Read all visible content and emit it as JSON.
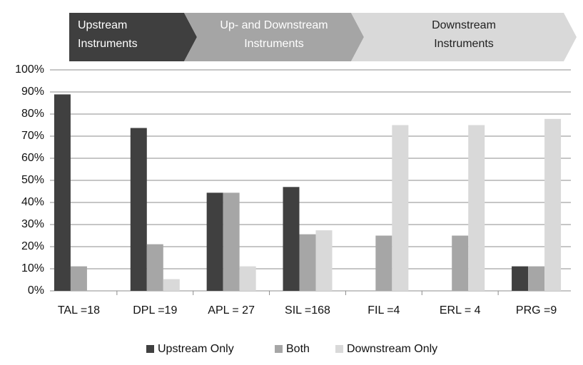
{
  "chart_data": {
    "type": "bar",
    "annotations": [
      {
        "lines": [
          "Upstream",
          "Instruments"
        ],
        "color": "#3f3f3f"
      },
      {
        "lines": [
          "Up- and Downstream",
          "Instruments"
        ],
        "color": "#a5a5a5"
      },
      {
        "lines": [
          "Downstream",
          "Instruments"
        ],
        "color": "#d9d9d9"
      }
    ],
    "categories": [
      "TAL =18",
      "DPL =19",
      "APL = 27",
      "SIL =168",
      "FIL =4",
      "ERL = 4",
      "PRG =9"
    ],
    "series": [
      {
        "name": "Upstream Only",
        "color": "#404040",
        "values": [
          88.9,
          73.7,
          44.4,
          47.0,
          0,
          0,
          11.1
        ]
      },
      {
        "name": "Both",
        "color": "#a6a6a6",
        "values": [
          11.1,
          21.1,
          44.4,
          25.6,
          25,
          25,
          11.1
        ]
      },
      {
        "name": "Downstream Only",
        "color": "#d9d9d9",
        "values": [
          0,
          5.3,
          11.1,
          27.4,
          75,
          75,
          77.8
        ]
      }
    ],
    "ylim": [
      0,
      100
    ],
    "yticks": [
      {
        "value": 0,
        "label": "0%"
      },
      {
        "value": 10,
        "label": "10%"
      },
      {
        "value": 20,
        "label": "20%"
      },
      {
        "value": 30,
        "label": "30%"
      },
      {
        "value": 40,
        "label": "40%"
      },
      {
        "value": 50,
        "label": "50%"
      },
      {
        "value": 60,
        "label": "60%"
      },
      {
        "value": 70,
        "label": "70%"
      },
      {
        "value": 80,
        "label": "80%"
      },
      {
        "value": 90,
        "label": "90%"
      },
      {
        "value": 100,
        "label": "100%"
      }
    ],
    "grid": true,
    "legend": "bottom"
  }
}
